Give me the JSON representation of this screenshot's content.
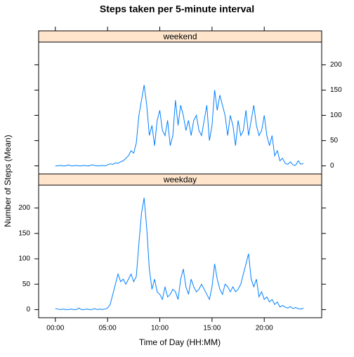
{
  "chart_data": {
    "type": "line",
    "title": "Steps taken per 5-minute interval",
    "xlabel": "Time of Day (HH:MM)",
    "ylabel": "Number of Steps (Mean)",
    "x": [
      0,
      0.25,
      0.5,
      0.75,
      1,
      1.25,
      1.5,
      1.75,
      2,
      2.25,
      2.5,
      2.75,
      3,
      3.25,
      3.5,
      3.75,
      4,
      4.25,
      4.5,
      4.75,
      5,
      5.25,
      5.5,
      5.75,
      6,
      6.25,
      6.5,
      6.75,
      7,
      7.25,
      7.5,
      7.75,
      8,
      8.25,
      8.5,
      8.75,
      9,
      9.25,
      9.5,
      9.75,
      10,
      10.25,
      10.5,
      10.75,
      11,
      11.25,
      11.5,
      11.75,
      12,
      12.25,
      12.5,
      12.75,
      13,
      13.25,
      13.5,
      13.75,
      14,
      14.25,
      14.5,
      14.75,
      15,
      15.25,
      15.5,
      15.75,
      16,
      16.25,
      16.5,
      16.75,
      17,
      17.25,
      17.5,
      17.75,
      18,
      18.25,
      18.5,
      18.75,
      19,
      19.25,
      19.5,
      19.75,
      20,
      20.25,
      20.5,
      20.75,
      21,
      21.25,
      21.5,
      21.75,
      22,
      22.25,
      22.5,
      22.75,
      23,
      23.25,
      23.5,
      23.75
    ],
    "series": [
      {
        "name": "weekend",
        "color": "#0080ff",
        "values": [
          0,
          0,
          1,
          0,
          0,
          2,
          0,
          0,
          1,
          0,
          0,
          1,
          0,
          0,
          2,
          1,
          0,
          0,
          1,
          0,
          2,
          4,
          3,
          6,
          5,
          8,
          10,
          15,
          20,
          30,
          25,
          45,
          100,
          130,
          160,
          120,
          60,
          80,
          40,
          90,
          110,
          70,
          60,
          90,
          40,
          60,
          130,
          80,
          120,
          100,
          70,
          90,
          60,
          90,
          100,
          70,
          60,
          90,
          120,
          50,
          80,
          150,
          110,
          140,
          120,
          100,
          60,
          100,
          80,
          40,
          90,
          60,
          70,
          110,
          60,
          90,
          120,
          80,
          60,
          70,
          100,
          60,
          40,
          60,
          20,
          30,
          10,
          15,
          5,
          3,
          8,
          2,
          1,
          10,
          3,
          5
        ]
      },
      {
        "name": "weekday",
        "color": "#0080ff",
        "values": [
          2,
          1,
          0,
          1,
          0,
          0,
          1,
          0,
          0,
          3,
          0,
          0,
          1,
          0,
          0,
          2,
          0,
          1,
          0,
          1,
          3,
          10,
          30,
          50,
          70,
          55,
          60,
          50,
          60,
          70,
          55,
          65,
          130,
          190,
          220,
          160,
          80,
          40,
          60,
          35,
          30,
          20,
          45,
          25,
          30,
          40,
          35,
          20,
          60,
          80,
          45,
          30,
          60,
          45,
          35,
          40,
          50,
          40,
          30,
          20,
          45,
          90,
          60,
          40,
          30,
          50,
          45,
          35,
          45,
          35,
          40,
          50,
          70,
          90,
          110,
          60,
          45,
          60,
          25,
          35,
          20,
          25,
          15,
          20,
          10,
          15,
          5,
          8,
          5,
          3,
          6,
          2,
          4,
          2,
          1,
          3
        ]
      }
    ],
    "xlim": [
      -1.6,
      25.5
    ],
    "xticks": [
      {
        "value": 0,
        "label": "00:00"
      },
      {
        "value": 5,
        "label": "05:00"
      },
      {
        "value": 10,
        "label": "10:00"
      },
      {
        "value": 15,
        "label": "15:00"
      },
      {
        "value": 20,
        "label": "20:00"
      }
    ],
    "ylim": [
      -16,
      245
    ],
    "yticks": [
      0,
      50,
      100,
      150,
      200
    ]
  }
}
